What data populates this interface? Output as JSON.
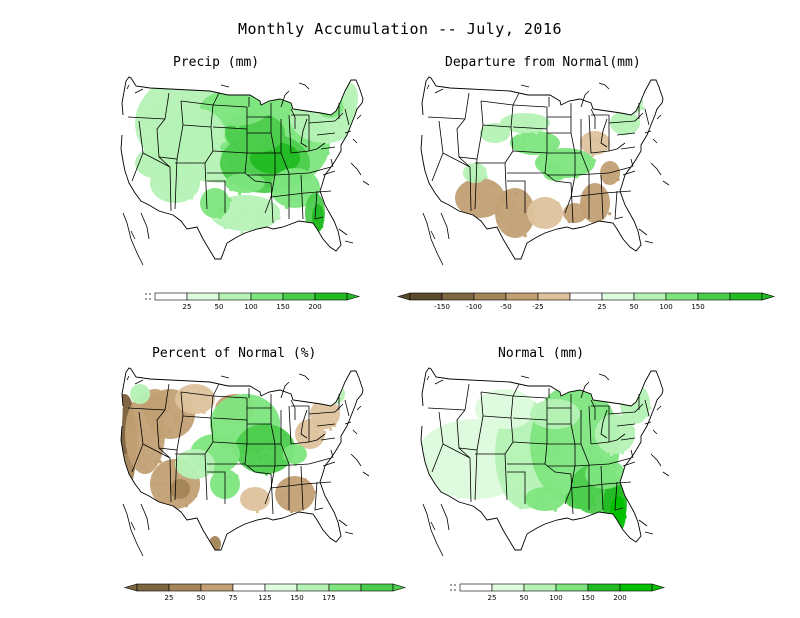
{
  "title": "Monthly Accumulation -- July, 2016",
  "colors": {
    "g1": "#ddfbdd",
    "g2": "#b5f2b5",
    "g3": "#7ee57e",
    "g4": "#4ccc4c",
    "g5": "#22bb22",
    "g6": "#00c000",
    "b1": "#ddc29c",
    "b2": "#c2a074",
    "b3": "#a38558",
    "b4": "#7d6642",
    "b5": "#5a4a2e",
    "boundary": "#000000"
  },
  "panels": [
    {
      "id": "precip",
      "title": "Precip (mm)",
      "legend": {
        "swatches": [
          "#ffffff",
          "#ddfbdd",
          "#b5f2b5",
          "#7ee57e",
          "#4ccc4c",
          "#22bb22"
        ],
        "labels": [
          "25",
          "50",
          "100",
          "150",
          "200"
        ],
        "extend_left": false,
        "extend_right": true
      }
    },
    {
      "id": "departure",
      "title": "Departure from Normal(mm)",
      "legend": {
        "swatches": [
          "#5a4a2e",
          "#7d6642",
          "#a38558",
          "#c2a074",
          "#ddc29c",
          "#ffffff",
          "#ddfbdd",
          "#b5f2b5",
          "#7ee57e",
          "#4ccc4c",
          "#22bb22"
        ],
        "labels": [
          "-150",
          "-100",
          "-50",
          "-25",
          "25",
          "50",
          "100",
          "150"
        ],
        "label_after_swatch": [
          0,
          1,
          2,
          3,
          5,
          6,
          7,
          8
        ],
        "extend_left": true,
        "extend_right": true
      }
    },
    {
      "id": "percent",
      "title": "Percent of Normal (%)",
      "legend": {
        "swatches": [
          "#7d6642",
          "#a38558",
          "#c2a074",
          "#ffffff",
          "#ddfbdd",
          "#b5f2b5",
          "#7ee57e",
          "#4ccc4c"
        ],
        "labels": [
          "25",
          "50",
          "75",
          "125",
          "150",
          "175"
        ],
        "label_after_swatch": [
          0,
          1,
          2,
          3,
          4,
          5
        ],
        "extend_left": true,
        "extend_right": true
      }
    },
    {
      "id": "normal",
      "title": "Normal (mm)",
      "legend": {
        "swatches": [
          "#ffffff",
          "#ddfbdd",
          "#b5f2b5",
          "#7ee57e",
          "#22bb22",
          "#00c000"
        ],
        "labels": [
          "25",
          "50",
          "100",
          "150",
          "200"
        ],
        "extend_left": false,
        "extend_right": true
      }
    }
  ]
}
